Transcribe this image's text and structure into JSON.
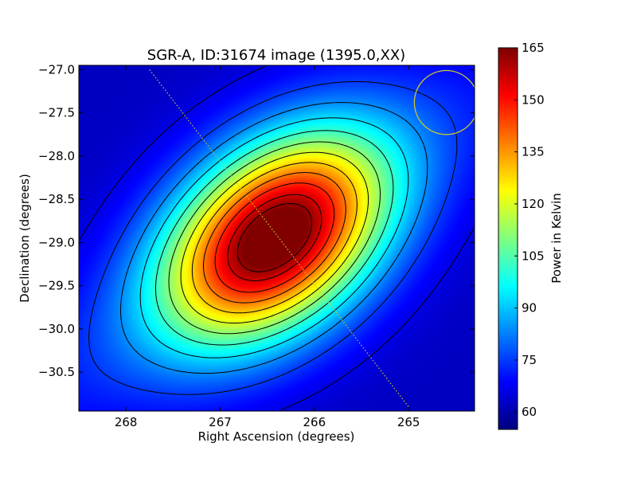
{
  "chart_data": {
    "type": "heatmap",
    "title": "SGR-A, ID:31674 image (1395.0,XX)",
    "xlabel": "Right Ascension (degrees)",
    "ylabel": "Declination (degrees)",
    "xlim": [
      268.5,
      264.3
    ],
    "ylim": [
      -30.95,
      -26.95
    ],
    "x_inverted": true,
    "xticks": [
      {
        "value": 268,
        "label": "268"
      },
      {
        "value": 267,
        "label": "267"
      },
      {
        "value": 266,
        "label": "266"
      },
      {
        "value": 265,
        "label": "265"
      }
    ],
    "yticks": [
      {
        "value": -27.0,
        "label": "−27.0"
      },
      {
        "value": -27.5,
        "label": "−27.5"
      },
      {
        "value": -28.0,
        "label": "−28.0"
      },
      {
        "value": -28.5,
        "label": "−28.5"
      },
      {
        "value": -29.0,
        "label": "−29.0"
      },
      {
        "value": -29.5,
        "label": "−29.5"
      },
      {
        "value": -30.0,
        "label": "−30.0"
      },
      {
        "value": -30.5,
        "label": "−30.5"
      }
    ],
    "colormap": "jet",
    "colorbar": {
      "label": "Power in Kelvin",
      "range": [
        55,
        165
      ],
      "ticks": [
        {
          "value": 60,
          "label": "60"
        },
        {
          "value": 75,
          "label": "75"
        },
        {
          "value": 90,
          "label": "90"
        },
        {
          "value": 105,
          "label": "105"
        },
        {
          "value": 120,
          "label": "120"
        },
        {
          "value": 135,
          "label": "135"
        },
        {
          "value": 150,
          "label": "150"
        },
        {
          "value": 165,
          "label": "165"
        }
      ]
    },
    "source": {
      "peak_ra": 266.42,
      "peak_dec": -28.94,
      "peak_value": 163,
      "background_value": 62
    },
    "contour_levels": [
      66,
      75,
      84,
      93,
      102,
      111,
      120,
      129,
      138,
      147,
      156,
      162
    ],
    "beam_circle": {
      "ra": 264.6,
      "dec": -27.38,
      "radius_deg": 0.37,
      "color": "#c8c832"
    },
    "galactic_plane_line": {
      "points": [
        [
          267.75,
          -27.0
        ],
        [
          265.0,
          -30.9
        ]
      ],
      "color": "#c8c832"
    },
    "grid": false
  }
}
